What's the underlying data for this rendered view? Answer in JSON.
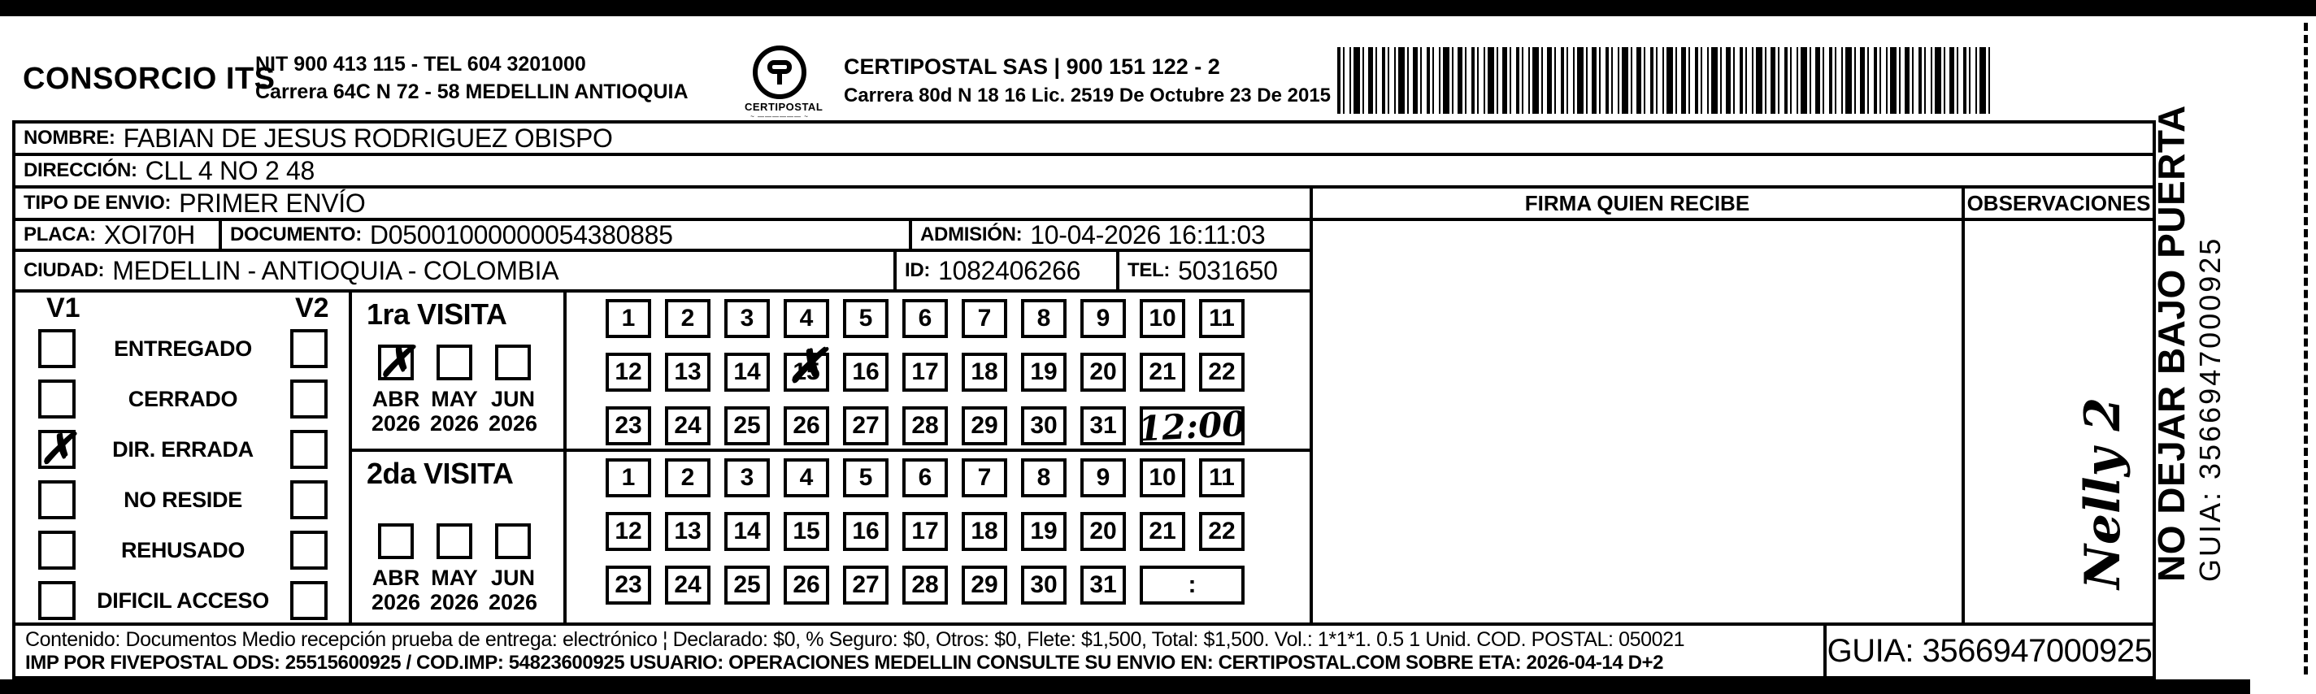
{
  "header": {
    "consorcio": "CONSORCIO ITS",
    "consorcio_nit": "NIT 900 413 115 - TEL 604 3201000",
    "consorcio_address": "Carrera 64C N 72 - 58 MEDELLIN ANTIOQUIA",
    "logo_text": "CERTIPOSTAL",
    "certipostal_line1": "CERTIPOSTAL SAS | 900 151 122 - 2",
    "certipostal_line2": "Carrera 80d N 18 16  Lic. 2519 De Octubre 23 De 2015"
  },
  "shipment": {
    "nombre_label": "NOMBRE:",
    "nombre": "FABIAN  DE JESUS RODRIGUEZ OBISPO",
    "direccion_label": "DIRECCIÓN:",
    "direccion": "CLL 4 NO 2 48",
    "tipo_label": "TIPO DE ENVIO:",
    "tipo": "PRIMER ENVÍO",
    "placa_label": "PLACA:",
    "placa": "XOI70H",
    "documento_label": "DOCUMENTO:",
    "documento": "D05001000000054380885",
    "admision_label": "ADMISIÓN:",
    "admision": "10-04-2026 16:11:03",
    "ciudad_label": "CIUDAD:",
    "ciudad": "MEDELLIN - ANTIOQUIA - COLOMBIA",
    "id_label": "ID:",
    "id": "1082406266",
    "tel_label": "TEL:",
    "tel": "5031650"
  },
  "columns": {
    "firma": "FIRMA QUIEN RECIBE",
    "observaciones": "OBSERVACIONES"
  },
  "status_panel": {
    "v1_label": "V1",
    "v2_label": "V2",
    "options": [
      "ENTREGADO",
      "CERRADO",
      "DIR. ERRADA",
      "NO RESIDE",
      "REHUSADO",
      "DIFICIL ACCESO"
    ],
    "v1_checked": "DIR. ERRADA",
    "mark_glyph": "✗"
  },
  "calendar": {
    "days": [
      "1",
      "2",
      "3",
      "4",
      "5",
      "6",
      "7",
      "8",
      "9",
      "10",
      "11",
      "12",
      "13",
      "14",
      "15",
      "16",
      "17",
      "18",
      "19",
      "20",
      "21",
      "22",
      "23",
      "24",
      "25",
      "26",
      "27",
      "28",
      "29",
      "30",
      "31"
    ]
  },
  "visits": {
    "first": {
      "title": "1ra VISITA",
      "months": [
        "ABR",
        "MAY",
        "JUN"
      ],
      "years": [
        "2026",
        "2026",
        "2026"
      ],
      "checked_month": "ABR",
      "crossed_day": "15",
      "time_note": "12:00"
    },
    "second": {
      "title": "2da VISITA",
      "months": [
        "ABR",
        "MAY",
        "JUN"
      ],
      "years": [
        "2026",
        "2026",
        "2026"
      ],
      "checked_month": "",
      "crossed_day": "",
      "time_note": ":"
    }
  },
  "handwriting": {
    "signature": "Nelly 2"
  },
  "side_panel": {
    "warning": "NO DEJAR BAJO PUERTA",
    "guia": "GUIA: 3566947000925"
  },
  "footer": {
    "line1": "Contenido: Documentos Medio recepción prueba de entrega: electrónico ¦ Declarado: $0, % Seguro: $0, Otros: $0, Flete: $1,500, Total: $1,500. Vol.: 1*1*1. 0.5  1 Unid. COD. POSTAL: 050021",
    "line2": "IMP POR FIVEPOSTAL ODS: 25515600925 / COD.IMP: 54823600925 USUARIO: OPERACIONES MEDELLIN CONSULTE SU ENVIO EN: CERTIPOSTAL.COM SOBRE ETA: 2026-04-14 D+2",
    "guia": "GUIA: 3566947000925"
  },
  "colors": {
    "ink": "#000000",
    "paper": "#ffffff"
  }
}
